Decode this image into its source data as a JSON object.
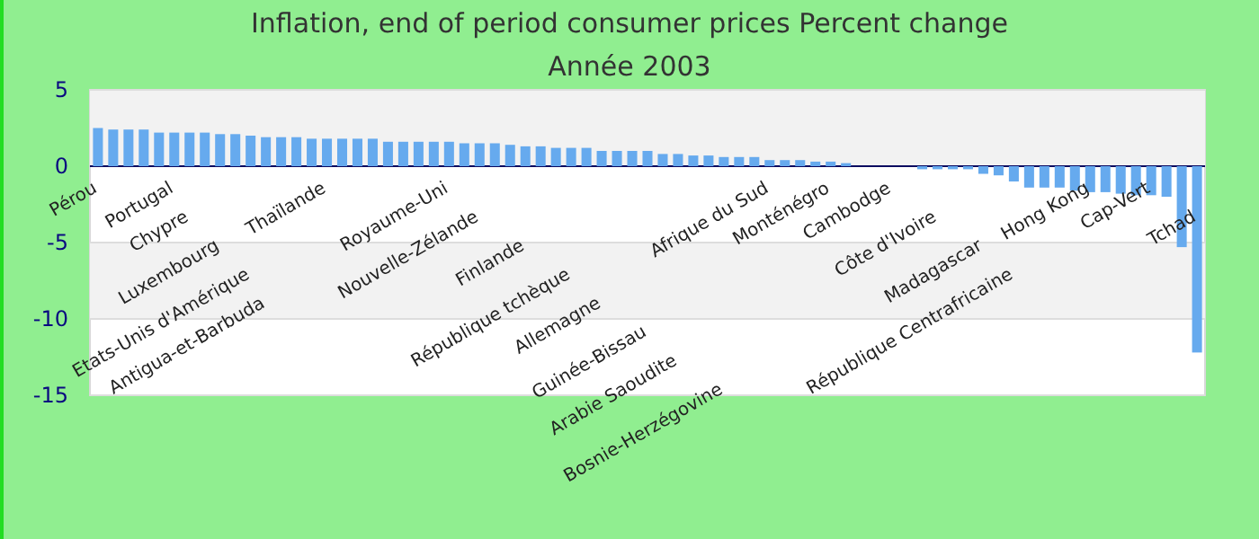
{
  "chart_data": {
    "type": "bar",
    "title": "Inflation, end of period consumer prices  Percent change",
    "subtitle": "Année 2003",
    "categories": [
      "Pérou",
      null,
      null,
      null,
      null,
      "Portugal",
      "Chypre",
      null,
      "Luxembourg",
      null,
      "Etats-Unis d'Amérique",
      "Antigua-et-Barbuda",
      null,
      null,
      null,
      "Thaïlande",
      null,
      null,
      null,
      null,
      null,
      null,
      null,
      "Royaume-Uni",
      null,
      "Nouvelle-Zélande",
      null,
      null,
      "Finlande",
      null,
      null,
      "République tchèque",
      null,
      "Allemagne",
      null,
      null,
      "Guinée-Bissau",
      null,
      "Arabie Saoudite",
      null,
      null,
      "Bosnie-Herzégovine",
      null,
      null,
      "Afrique du Sud",
      null,
      null,
      null,
      "Monténégro",
      null,
      null,
      null,
      "Cambodge",
      null,
      null,
      "Côte d'Ivoire",
      null,
      null,
      "Madagascar",
      null,
      "République Centrafricaine",
      null,
      null,
      null,
      null,
      "Hong Kong",
      null,
      null,
      null,
      "Cap-Vert",
      null,
      null,
      "Tchad"
    ],
    "values": [
      2.5,
      2.4,
      2.4,
      2.4,
      2.2,
      2.2,
      2.2,
      2.2,
      2.1,
      2.1,
      2.0,
      1.9,
      1.9,
      1.9,
      1.8,
      1.8,
      1.8,
      1.8,
      1.8,
      1.6,
      1.6,
      1.6,
      1.6,
      1.6,
      1.5,
      1.5,
      1.5,
      1.4,
      1.3,
      1.3,
      1.2,
      1.2,
      1.2,
      1.0,
      1.0,
      1.0,
      1.0,
      0.8,
      0.8,
      0.7,
      0.7,
      0.6,
      0.6,
      0.6,
      0.4,
      0.4,
      0.4,
      0.3,
      0.3,
      0.2,
      0,
      0,
      0,
      0,
      -0.2,
      -0.2,
      -0.2,
      -0.2,
      -0.5,
      -0.6,
      -1.0,
      -1.4,
      -1.4,
      -1.4,
      -1.6,
      -1.7,
      -1.7,
      -1.8,
      -1.9,
      -1.9,
      -2.0,
      -5.3,
      -12.2
    ],
    "color": "#66aaee",
    "ylim": [
      -15,
      5
    ],
    "yticks": [
      5,
      0,
      -5,
      -10,
      -15
    ],
    "grid": "y"
  }
}
